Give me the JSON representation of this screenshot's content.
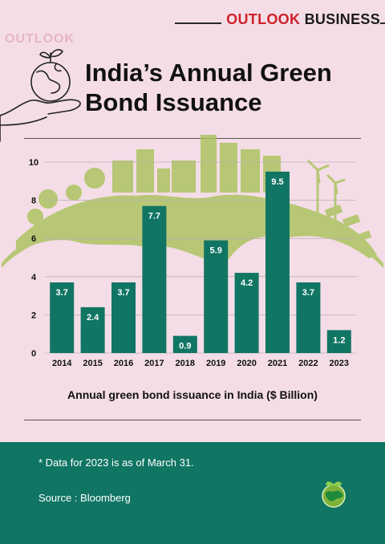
{
  "brand": {
    "accent_word": "OUTLOOK",
    "rest_word": "BUSINESS"
  },
  "ghost_text": "OUTLOOK",
  "title": {
    "line1": "India’s Annual Green",
    "line2": "Bond Issuance"
  },
  "chart_data": {
    "type": "bar",
    "categories": [
      "2014",
      "2015",
      "2016",
      "2017",
      "2018",
      "2019",
      "2020",
      "2021",
      "2022",
      "2023"
    ],
    "values": [
      3.7,
      2.4,
      3.7,
      7.7,
      0.9,
      5.9,
      4.2,
      9.5,
      3.7,
      1.2
    ],
    "data_labels": [
      "3.7",
      "2.4",
      "3.7",
      "7.7",
      "0.9",
      "5.9",
      "4.2",
      "9.5",
      "3.7",
      "1.2"
    ],
    "yticks": [
      0,
      2,
      4,
      6,
      8,
      10
    ],
    "ylim": [
      0,
      10
    ],
    "grid": true,
    "xlabel": "Annual green bond issuance in India ($ Billion)",
    "colors": {
      "bar": "#117564",
      "bar_label": "#ffffff",
      "grid": "#b9b0b4",
      "illustration": "#a9c25a"
    }
  },
  "footnote": "*  Data for 2023 is as of March 31.",
  "source": "Source : Bloomberg",
  "colors": {
    "background": "#f4dde6",
    "footer": "#117564",
    "brand_red": "#d0202a"
  }
}
